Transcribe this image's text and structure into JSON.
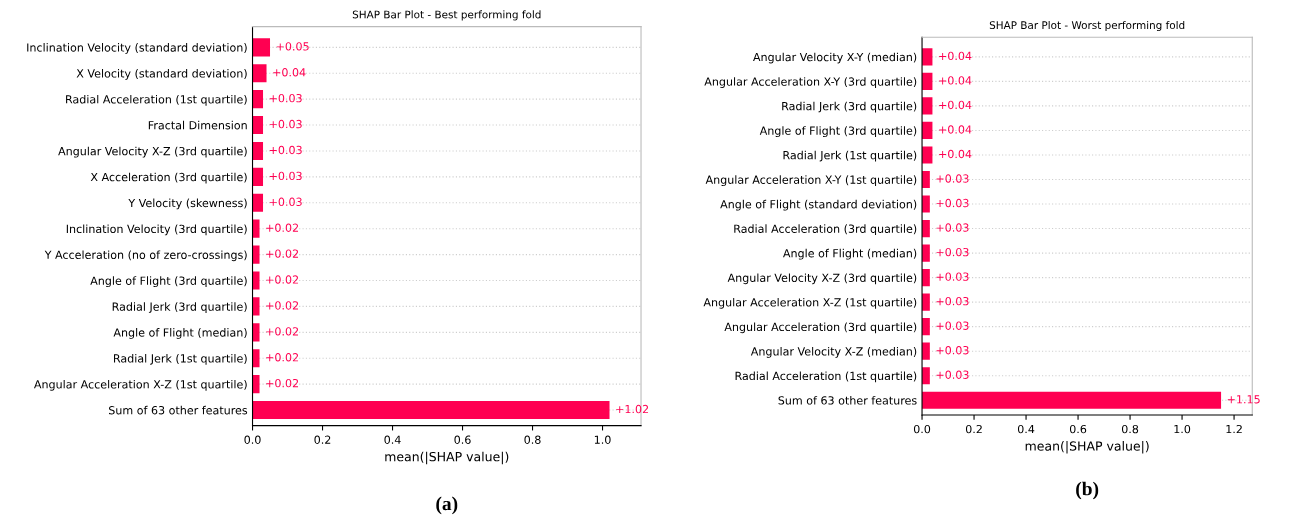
{
  "chart_data": [
    {
      "type": "bar",
      "orientation": "horizontal",
      "title": "SHAP Bar Plot - Best performing fold",
      "xlabel": "mean(|SHAP value|)",
      "color": "#ff0051",
      "grid": "y",
      "xlim": [
        0,
        1.11
      ],
      "xticks": [
        {
          "value": 0,
          "label": "0.0"
        },
        {
          "value": 0.2,
          "label": "0.2"
        },
        {
          "value": 0.4,
          "label": "0.4"
        },
        {
          "value": 0.6,
          "label": "0.6"
        },
        {
          "value": 0.8,
          "label": "0.8"
        },
        {
          "value": 1.0,
          "label": "1.0"
        }
      ],
      "annotations": [
        "(a)"
      ],
      "categories": [
        "Inclination Velocity (standard deviation)",
        "X Velocity (standard deviation)",
        "Radial Acceleration (1st quartile)",
        "Fractal Dimension",
        "Angular Velocity X-Z (3rd quartile)",
        "X Acceleration (3rd quartile)",
        "Y Velocity (skewness)",
        "Inclination Velocity (3rd quartile)",
        "Y Acceleration (no of zero-crossings)",
        "Angle of Flight (3rd quartile)",
        "Radial Jerk (3rd quartile)",
        "Angle of Flight (median)",
        "Radial Jerk (1st quartile)",
        "Angular Acceleration X-Z (1st quartile)",
        "Sum of 63 other features"
      ],
      "values": [
        0.05,
        0.04,
        0.03,
        0.03,
        0.03,
        0.03,
        0.03,
        0.02,
        0.02,
        0.02,
        0.02,
        0.02,
        0.02,
        0.02,
        1.02
      ],
      "value_labels": [
        "+0.05",
        "+0.04",
        "+0.03",
        "+0.03",
        "+0.03",
        "+0.03",
        "+0.03",
        "+0.02",
        "+0.02",
        "+0.02",
        "+0.02",
        "+0.02",
        "+0.02",
        "+0.02",
        "+1.02"
      ]
    },
    {
      "type": "bar",
      "orientation": "horizontal",
      "title": "SHAP Bar Plot - Worst performing fold",
      "xlabel": "mean(|SHAP value|)",
      "color": "#ff0051",
      "grid": "y",
      "xlim": [
        0,
        1.27
      ],
      "xticks": [
        {
          "value": 0,
          "label": "0.0"
        },
        {
          "value": 0.2,
          "label": "0.2"
        },
        {
          "value": 0.4,
          "label": "0.4"
        },
        {
          "value": 0.6,
          "label": "0.6"
        },
        {
          "value": 0.8,
          "label": "0.8"
        },
        {
          "value": 1.0,
          "label": "1.0"
        },
        {
          "value": 1.2,
          "label": "1.2"
        }
      ],
      "annotations": [
        "(b)"
      ],
      "categories": [
        "Angular Velocity X-Y (median)",
        "Angular Acceleration X-Y (3rd quartile)",
        "Radial Jerk (3rd quartile)",
        "Angle of Flight (3rd quartile)",
        "Radial Jerk (1st quartile)",
        "Angular Acceleration X-Y (1st quartile)",
        "Angle of Flight (standard deviation)",
        "Radial Acceleration (3rd quartile)",
        "Angle of Flight (median)",
        "Angular Velocity X-Z (3rd quartile)",
        "Angular Acceleration X-Z (1st quartile)",
        "Angular Acceleration (3rd quartile)",
        "Angular Velocity X-Z (median)",
        "Radial Acceleration (1st quartile)",
        "Sum of 63 other features"
      ],
      "values": [
        0.04,
        0.04,
        0.04,
        0.04,
        0.04,
        0.03,
        0.03,
        0.03,
        0.03,
        0.03,
        0.03,
        0.03,
        0.03,
        0.03,
        1.15
      ],
      "value_labels": [
        "+0.04",
        "+0.04",
        "+0.04",
        "+0.04",
        "+0.04",
        "+0.03",
        "+0.03",
        "+0.03",
        "+0.03",
        "+0.03",
        "+0.03",
        "+0.03",
        "+0.03",
        "+0.03",
        "+1.15"
      ]
    }
  ]
}
